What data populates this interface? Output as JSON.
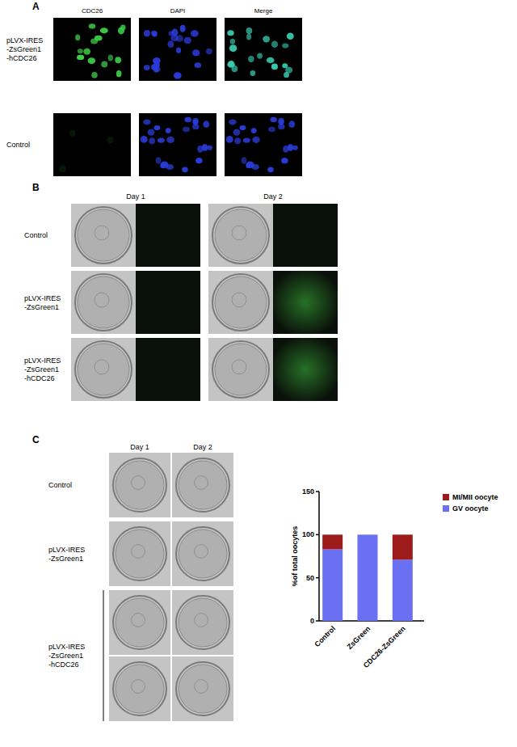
{
  "panel_a": {
    "label": "A",
    "columns": [
      "CDC26",
      "DAPI",
      "Merge"
    ],
    "rows": [
      [
        "pLVX-IRES",
        "-ZsGreen1",
        "-hCDC26"
      ],
      [
        "Control"
      ]
    ]
  },
  "panel_b": {
    "label": "B",
    "days": [
      "Day 1",
      "Day 2"
    ],
    "rows": [
      [
        "Control"
      ],
      [
        "pLVX-IRES",
        "-ZsGreen1"
      ],
      [
        "pLVX-IRES",
        "-ZsGreen1",
        "-hCDC26"
      ]
    ]
  },
  "panel_c": {
    "label": "C",
    "days": [
      "Day 1",
      "Day 2"
    ],
    "rows": [
      [
        "Control"
      ],
      [
        "pLVX-IRES",
        "-ZsGreen1"
      ],
      [
        "pLVX-IRES",
        "-ZsGreen1",
        "-hCDC26"
      ]
    ]
  },
  "chart_data": {
    "type": "bar",
    "stacked": true,
    "categories": [
      "Control",
      "ZsGreen",
      "CDC26-ZsGreen"
    ],
    "series": [
      {
        "name": "GV oocyte",
        "color": "#6b6ff2",
        "values": [
          83,
          100,
          71
        ]
      },
      {
        "name": "MI/MII oocyte",
        "color": "#9e1b1b",
        "values": [
          17,
          0,
          29
        ]
      }
    ],
    "ylabel": "%of total oocytes",
    "ylim": [
      0,
      150
    ],
    "yticks": [
      0,
      50,
      100,
      150
    ],
    "legend": "right"
  }
}
